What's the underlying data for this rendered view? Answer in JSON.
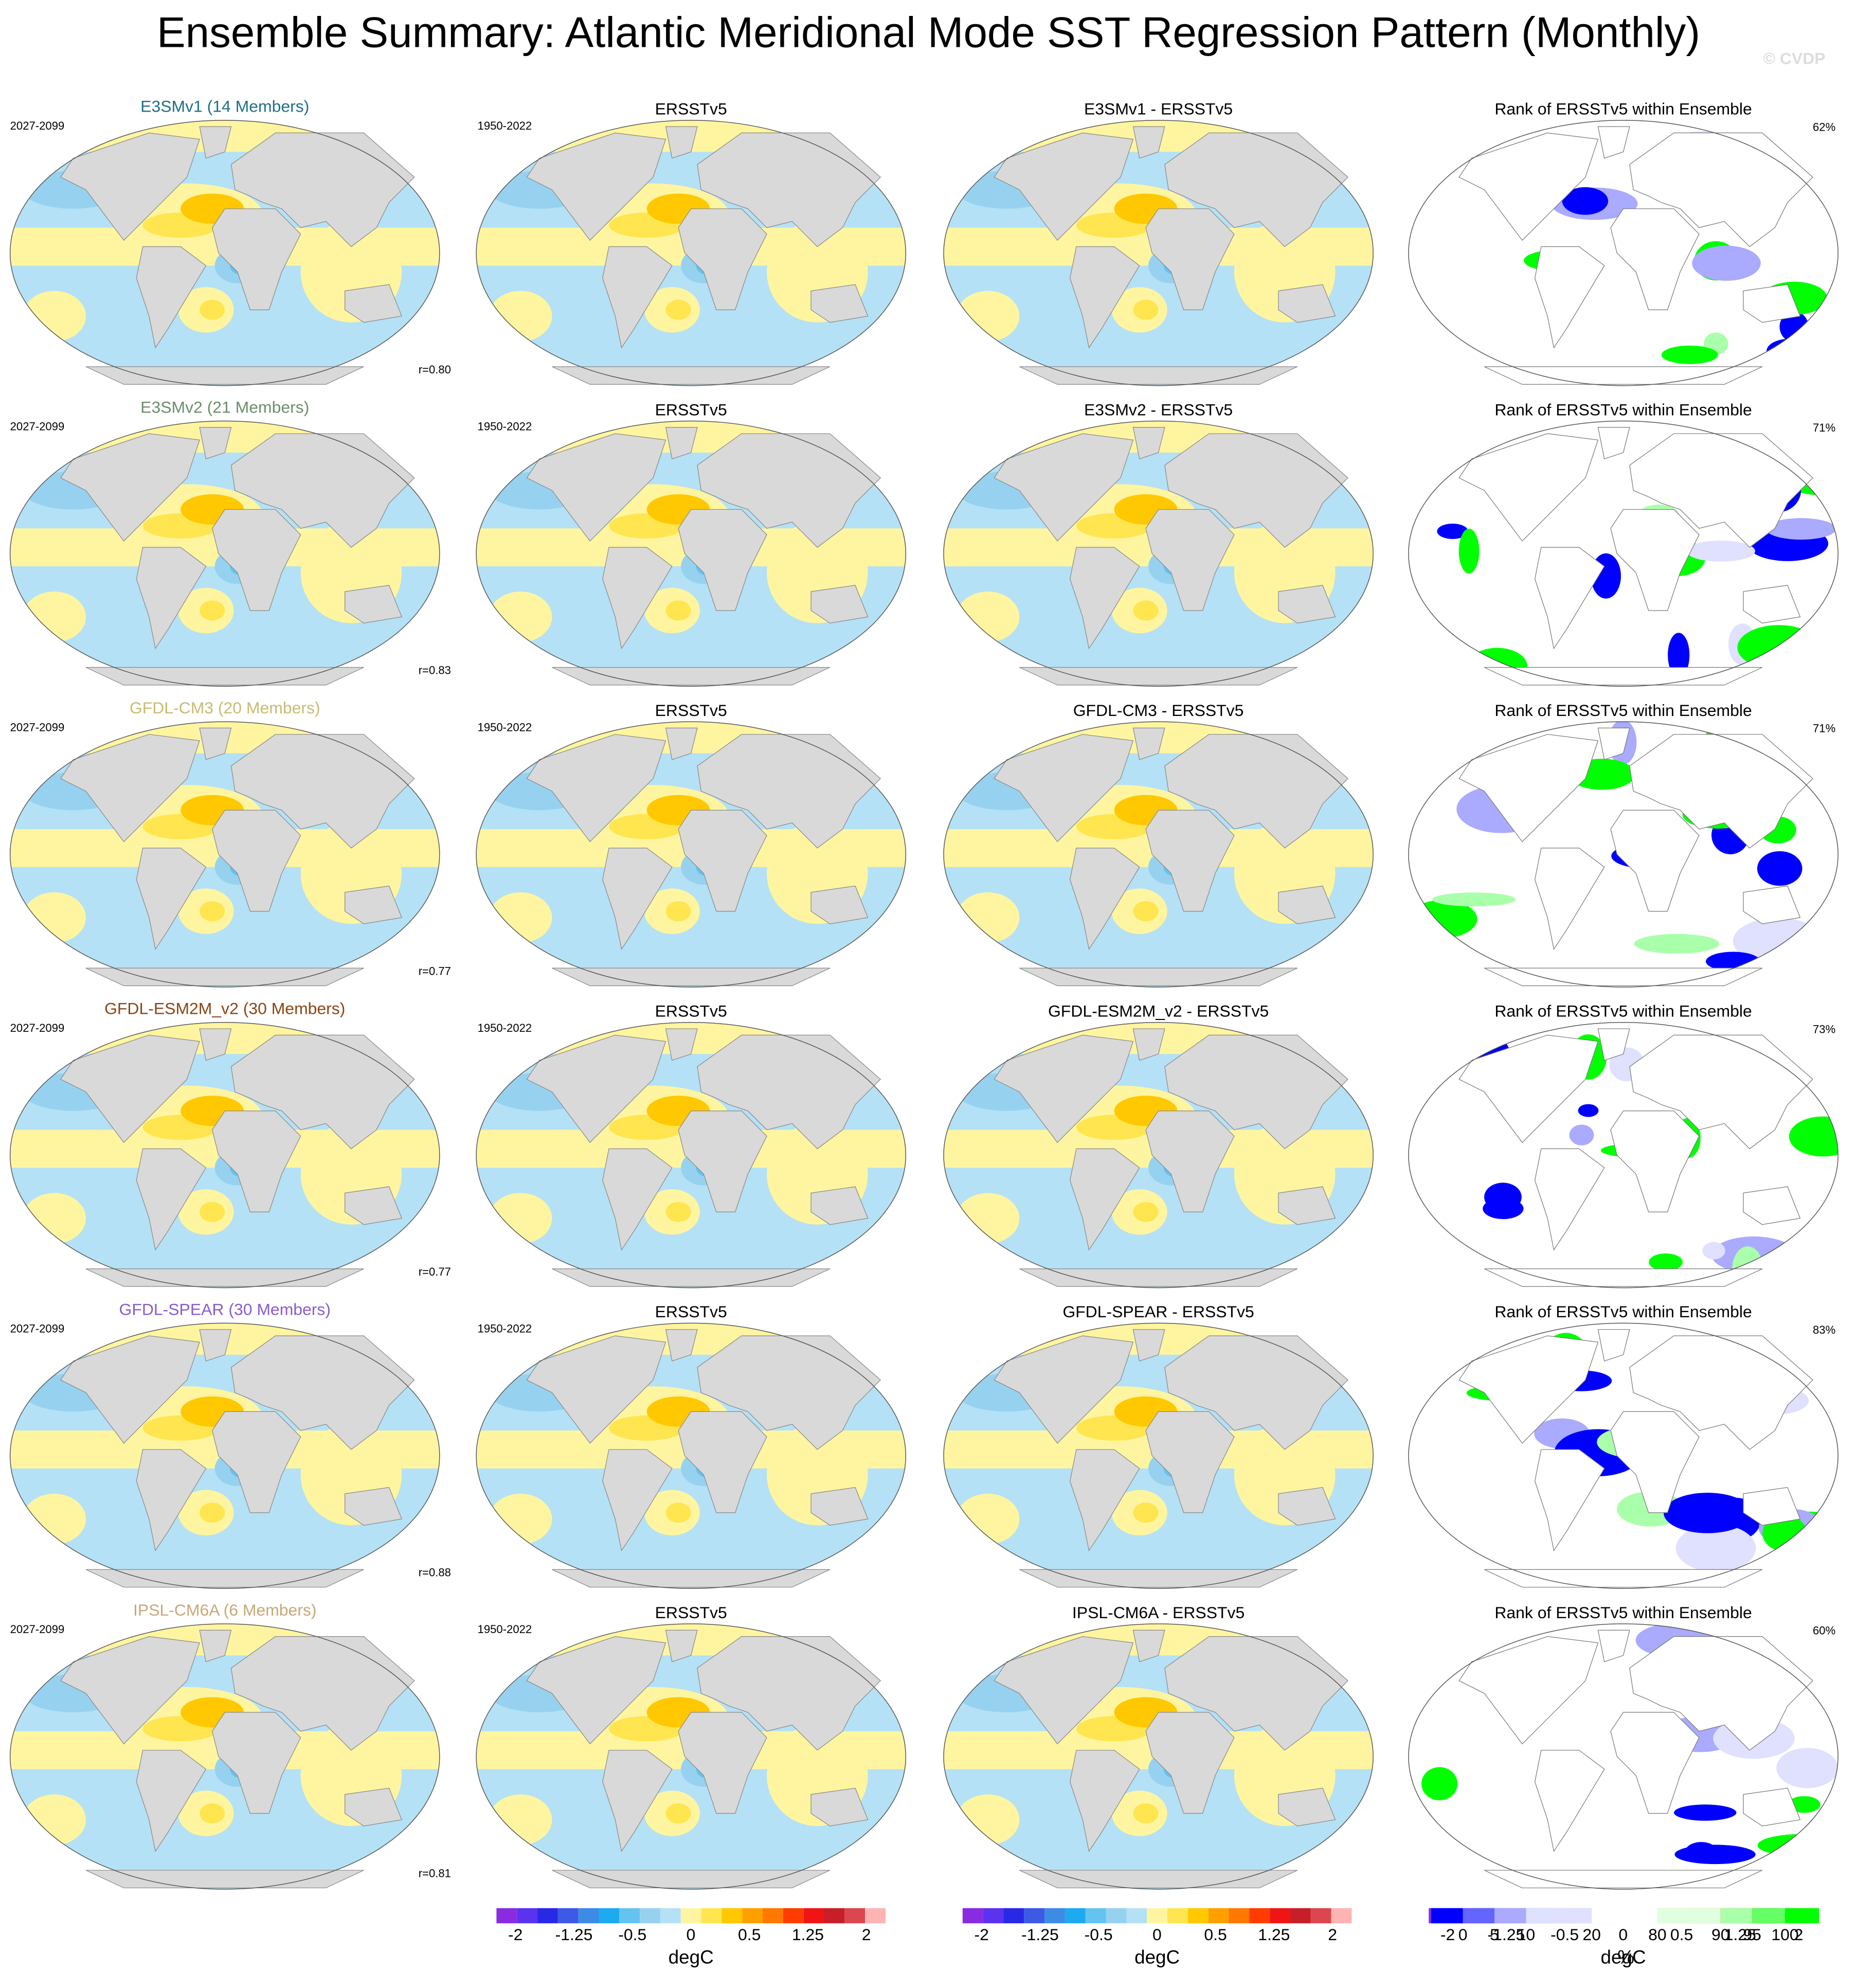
{
  "title": "Ensemble Summary: Atlantic Meridional Mode SST Regression Pattern (Monthly)",
  "watermark": "© CVDP",
  "rows": [
    {
      "model": "E3SMv1 (14 Members)",
      "model_color": "#1f6f8b",
      "model_years": "2027-2099",
      "r": "r=0.80",
      "obs": "ERSSTv5",
      "obs_years": "1950-2022",
      "diff": "E3SMv1 - ERSSTv5",
      "rank": "Rank of ERSSTv5 within Ensemble",
      "rank_pct": "62%"
    },
    {
      "model": "E3SMv2 (21 Members)",
      "model_color": "#6b8f6b",
      "model_years": "2027-2099",
      "r": "r=0.83",
      "obs": "ERSSTv5",
      "obs_years": "1950-2022",
      "diff": "E3SMv2 - ERSSTv5",
      "rank": "Rank of ERSSTv5 within Ensemble",
      "rank_pct": "71%"
    },
    {
      "model": "GFDL-CM3 (20 Members)",
      "model_color": "#c9bb72",
      "model_years": "2027-2099",
      "r": "r=0.77",
      "obs": "ERSSTv5",
      "obs_years": "1950-2022",
      "diff": "GFDL-CM3 - ERSSTv5",
      "rank": "Rank of ERSSTv5 within Ensemble",
      "rank_pct": "71%"
    },
    {
      "model": "GFDL-ESM2M_v2 (30 Members)",
      "model_color": "#8b4513",
      "model_years": "2027-2099",
      "r": "r=0.77",
      "obs": "ERSSTv5",
      "obs_years": "1950-2022",
      "diff": "GFDL-ESM2M_v2 - ERSSTv5",
      "rank": "Rank of ERSSTv5 within Ensemble",
      "rank_pct": "73%"
    },
    {
      "model": "GFDL-SPEAR (30 Members)",
      "model_color": "#8a5ccc",
      "model_years": "2027-2099",
      "r": "r=0.88",
      "obs": "ERSSTv5",
      "obs_years": "1950-2022",
      "diff": "GFDL-SPEAR - ERSSTv5",
      "rank": "Rank of ERSSTv5 within Ensemble",
      "rank_pct": "83%"
    },
    {
      "model": "IPSL-CM6A (6 Members)",
      "model_color": "#c8a878",
      "model_years": "2027-2099",
      "r": "r=0.81",
      "obs": "ERSSTv5",
      "obs_years": "1950-2022",
      "diff": "IPSL-CM6A - ERSSTv5",
      "rank": "Rank of ERSSTv5 within Ensemble",
      "rank_pct": "60%"
    }
  ],
  "colorbars": {
    "anomaly": {
      "labels": [
        -2,
        -1.25,
        -0.5,
        0,
        0.5,
        1.25,
        2
      ],
      "unit": "degC",
      "colors": [
        "#8a2be2",
        "#5a32f0",
        "#2828e6",
        "#3c5ae6",
        "#3c8ce6",
        "#1eaaf0",
        "#64c3f0",
        "#96d2f0",
        "#b4e1f5",
        "#fff5a0",
        "#ffe650",
        "#ffc800",
        "#ffa000",
        "#ff7800",
        "#ff3c00",
        "#f01414",
        "#c81e28",
        "#dc4650",
        "#ffb4b4"
      ]
    },
    "rank": {
      "labels": [
        0,
        5,
        10,
        20,
        80,
        90,
        95,
        100
      ],
      "unit": "%",
      "colors": [
        "#0000ff",
        "#6464ff",
        "#aaaaff",
        "#e0e0ff",
        "#ffffff",
        "#e0ffe0",
        "#aaffaa",
        "#64ff64",
        "#00ff00"
      ]
    }
  }
}
